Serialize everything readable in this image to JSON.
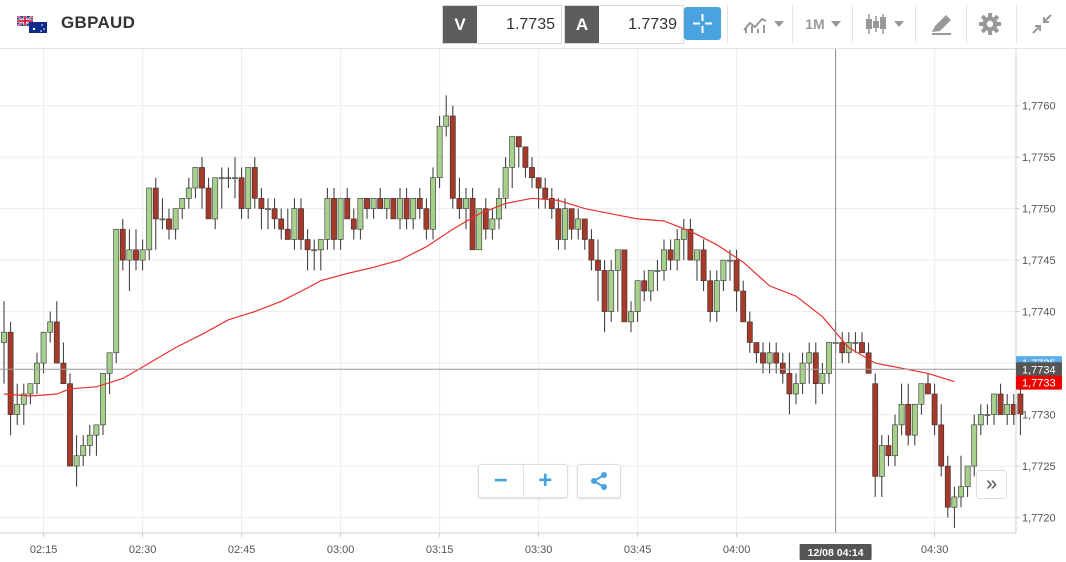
{
  "header": {
    "symbol": "GBPAUD",
    "flag_icon": "gb-au-flag-icon",
    "bid": {
      "label": "V",
      "value": "1.7735"
    },
    "ask": {
      "label": "A",
      "value": "1.7739"
    },
    "timeframe": "1M",
    "icons": [
      "crosshair-icon",
      "line-chart-icon",
      "candlestick-icon",
      "drawing-pencil-icon",
      "gear-icon",
      "collapse-icon"
    ],
    "accent_color": "#4aa3df"
  },
  "chart_data": {
    "type": "candlestick",
    "symbol": "GBPAUD",
    "interval": "1M",
    "x_ticks": [
      "02:15",
      "02:30",
      "02:45",
      "03:00",
      "03:15",
      "03:30",
      "03:45",
      "04:00",
      "04:30"
    ],
    "x_tick_index": [
      6,
      21,
      36,
      51,
      66,
      81,
      96,
      111,
      141
    ],
    "y_ticks": [
      "1,7760",
      "1,7755",
      "1,7750",
      "1,7745",
      "1,7740",
      "1,7735",
      "1,7730",
      "1,7725",
      "1,7720"
    ],
    "y_tick_values": [
      1.776,
      1.7755,
      1.775,
      1.7745,
      1.774,
      1.7735,
      1.773,
      1.7725,
      1.772
    ],
    "ylim": [
      1.77185,
      1.77655
    ],
    "grid": true,
    "current_price_line": 1.77344,
    "price_labels": [
      {
        "text": "1,7735",
        "value": 1.7735,
        "color": "#5aaee8"
      },
      {
        "text": "1,7734",
        "value": 1.77344,
        "color": "#555555"
      },
      {
        "text": "1,7733",
        "value": 1.77331,
        "color": "#ee0000"
      }
    ],
    "crosshair": {
      "index": 126,
      "label": "12/08 04:14"
    },
    "colors": {
      "up": "#a8d08d",
      "down": "#a63a2a",
      "ma": "#e8322e"
    },
    "candles": [
      [
        1.7737,
        1.7741,
        1.7733,
        1.7738
      ],
      [
        1.7738,
        1.7739,
        1.7728,
        1.773
      ],
      [
        1.773,
        1.7733,
        1.7729,
        1.7731
      ],
      [
        1.7731,
        1.7733,
        1.7729,
        1.7732
      ],
      [
        1.7732,
        1.7733,
        1.7731,
        1.7733
      ],
      [
        1.7733,
        1.7736,
        1.7732,
        1.7735
      ],
      [
        1.7735,
        1.7738,
        1.7734,
        1.7738
      ],
      [
        1.7738,
        1.774,
        1.7737,
        1.7739
      ],
      [
        1.7739,
        1.7741,
        1.7735,
        1.7735
      ],
      [
        1.7735,
        1.7737,
        1.7733,
        1.7733
      ],
      [
        1.7733,
        1.7734,
        1.7725,
        1.7725
      ],
      [
        1.7725,
        1.7728,
        1.7723,
        1.7726
      ],
      [
        1.7726,
        1.7728,
        1.7725,
        1.7727
      ],
      [
        1.7727,
        1.7729,
        1.7726,
        1.7728
      ],
      [
        1.7728,
        1.7729,
        1.7726,
        1.7729
      ],
      [
        1.7729,
        1.7734,
        1.7728,
        1.7734
      ],
      [
        1.7734,
        1.7736,
        1.7732,
        1.7736
      ],
      [
        1.7736,
        1.7748,
        1.7735,
        1.7748
      ],
      [
        1.7748,
        1.7749,
        1.7744,
        1.7745
      ],
      [
        1.7745,
        1.7748,
        1.7742,
        1.7746
      ],
      [
        1.7746,
        1.7748,
        1.7744,
        1.7745
      ],
      [
        1.7745,
        1.7747,
        1.7744,
        1.7746
      ],
      [
        1.7746,
        1.7752,
        1.7745,
        1.7752
      ],
      [
        1.7752,
        1.7753,
        1.7746,
        1.7749
      ],
      [
        1.7749,
        1.7751,
        1.7748,
        1.7749
      ],
      [
        1.7749,
        1.775,
        1.7747,
        1.7748
      ],
      [
        1.7748,
        1.775,
        1.7747,
        1.775
      ],
      [
        1.775,
        1.7751,
        1.7749,
        1.7751
      ],
      [
        1.7751,
        1.7753,
        1.775,
        1.7752
      ],
      [
        1.7752,
        1.7754,
        1.7751,
        1.7754
      ],
      [
        1.7754,
        1.7755,
        1.775,
        1.7752
      ],
      [
        1.7752,
        1.7753,
        1.7749,
        1.7749
      ],
      [
        1.7749,
        1.7753,
        1.7748,
        1.7753
      ],
      [
        1.7753,
        1.7754,
        1.775,
        1.7753
      ],
      [
        1.7753,
        1.7754,
        1.7752,
        1.7753
      ],
      [
        1.7753,
        1.7755,
        1.7751,
        1.7753
      ],
      [
        1.7753,
        1.7754,
        1.7749,
        1.775
      ],
      [
        1.775,
        1.7754,
        1.7749,
        1.7754
      ],
      [
        1.7754,
        1.7755,
        1.775,
        1.7751
      ],
      [
        1.7751,
        1.7752,
        1.7748,
        1.775
      ],
      [
        1.775,
        1.7751,
        1.7748,
        1.775
      ],
      [
        1.775,
        1.7751,
        1.7748,
        1.7749
      ],
      [
        1.7749,
        1.775,
        1.7747,
        1.7748
      ],
      [
        1.7748,
        1.775,
        1.7747,
        1.7747
      ],
      [
        1.7747,
        1.7751,
        1.7746,
        1.775
      ],
      [
        1.775,
        1.7751,
        1.7746,
        1.7747
      ],
      [
        1.7747,
        1.7748,
        1.7744,
        1.7746
      ],
      [
        1.7746,
        1.7747,
        1.7744,
        1.7746
      ],
      [
        1.7746,
        1.7747,
        1.7744,
        1.7747
      ],
      [
        1.7747,
        1.7752,
        1.7746,
        1.7751
      ],
      [
        1.7751,
        1.7752,
        1.7746,
        1.7747
      ],
      [
        1.7747,
        1.7751,
        1.7746,
        1.7751
      ],
      [
        1.7751,
        1.7752,
        1.7749,
        1.7749
      ],
      [
        1.7749,
        1.775,
        1.7747,
        1.7748
      ],
      [
        1.7748,
        1.7751,
        1.7747,
        1.7751
      ],
      [
        1.7751,
        1.7751,
        1.7749,
        1.775
      ],
      [
        1.775,
        1.7751,
        1.7749,
        1.7751
      ],
      [
        1.7751,
        1.7752,
        1.775,
        1.775
      ],
      [
        1.775,
        1.7751,
        1.7749,
        1.7751
      ],
      [
        1.7751,
        1.7751,
        1.7749,
        1.7749
      ],
      [
        1.7749,
        1.7752,
        1.7748,
        1.7751
      ],
      [
        1.7751,
        1.7752,
        1.7748,
        1.7749
      ],
      [
        1.7749,
        1.7751,
        1.7748,
        1.7751
      ],
      [
        1.7751,
        1.7752,
        1.7749,
        1.775
      ],
      [
        1.775,
        1.7751,
        1.7747,
        1.7748
      ],
      [
        1.7748,
        1.7754,
        1.7747,
        1.7753
      ],
      [
        1.7753,
        1.7759,
        1.7752,
        1.7758
      ],
      [
        1.7758,
        1.7761,
        1.7757,
        1.7759
      ],
      [
        1.7759,
        1.776,
        1.775,
        1.7751
      ],
      [
        1.7751,
        1.7753,
        1.7749,
        1.775
      ],
      [
        1.775,
        1.7752,
        1.7748,
        1.7751
      ],
      [
        1.7751,
        1.7752,
        1.7746,
        1.7746
      ],
      [
        1.7746,
        1.775,
        1.7746,
        1.775
      ],
      [
        1.775,
        1.7751,
        1.7747,
        1.7748
      ],
      [
        1.7748,
        1.775,
        1.7747,
        1.7749
      ],
      [
        1.7749,
        1.7752,
        1.7748,
        1.7751
      ],
      [
        1.7751,
        1.7755,
        1.775,
        1.7754
      ],
      [
        1.7754,
        1.7757,
        1.7752,
        1.7757
      ],
      [
        1.7757,
        1.7757,
        1.7754,
        1.7756
      ],
      [
        1.7756,
        1.7756,
        1.7753,
        1.7754
      ],
      [
        1.7754,
        1.7755,
        1.7752,
        1.7753
      ],
      [
        1.7753,
        1.7753,
        1.775,
        1.7752
      ],
      [
        1.7752,
        1.7753,
        1.775,
        1.7751
      ],
      [
        1.7751,
        1.7752,
        1.7749,
        1.775
      ],
      [
        1.775,
        1.7751,
        1.7746,
        1.7747
      ],
      [
        1.7747,
        1.7751,
        1.7746,
        1.775
      ],
      [
        1.775,
        1.775,
        1.7747,
        1.7748
      ],
      [
        1.7748,
        1.775,
        1.7747,
        1.7749
      ],
      [
        1.7749,
        1.7749,
        1.7746,
        1.7747
      ],
      [
        1.7747,
        1.7748,
        1.7744,
        1.7745
      ],
      [
        1.7745,
        1.7747,
        1.7741,
        1.7744
      ],
      [
        1.7744,
        1.7745,
        1.7738,
        1.774
      ],
      [
        1.774,
        1.7745,
        1.7739,
        1.7744
      ],
      [
        1.7744,
        1.7746,
        1.774,
        1.7746
      ],
      [
        1.7746,
        1.7746,
        1.7739,
        1.7739
      ],
      [
        1.7739,
        1.7741,
        1.7738,
        1.774
      ],
      [
        1.774,
        1.7743,
        1.7739,
        1.7743
      ],
      [
        1.7743,
        1.7744,
        1.7741,
        1.7742
      ],
      [
        1.7742,
        1.7744,
        1.7741,
        1.7744
      ],
      [
        1.7744,
        1.7745,
        1.7742,
        1.7744
      ],
      [
        1.7744,
        1.7747,
        1.7743,
        1.7746
      ],
      [
        1.7746,
        1.7747,
        1.7744,
        1.7745
      ],
      [
        1.7745,
        1.7748,
        1.7744,
        1.7747
      ],
      [
        1.7747,
        1.7749,
        1.7745,
        1.7748
      ],
      [
        1.7748,
        1.7749,
        1.7745,
        1.7745
      ],
      [
        1.7745,
        1.7746,
        1.7743,
        1.7746
      ],
      [
        1.7746,
        1.7747,
        1.7742,
        1.7743
      ],
      [
        1.7743,
        1.7744,
        1.7739,
        1.774
      ],
      [
        1.774,
        1.7744,
        1.7739,
        1.7743
      ],
      [
        1.7743,
        1.7745,
        1.7742,
        1.7745
      ],
      [
        1.7745,
        1.7746,
        1.7743,
        1.7745
      ],
      [
        1.7745,
        1.7746,
        1.774,
        1.7742
      ],
      [
        1.7742,
        1.7743,
        1.7739,
        1.7739
      ],
      [
        1.7739,
        1.774,
        1.7736,
        1.7737
      ],
      [
        1.7737,
        1.7737,
        1.7735,
        1.7736
      ],
      [
        1.7736,
        1.7737,
        1.7734,
        1.7735
      ],
      [
        1.7735,
        1.7737,
        1.7734,
        1.7736
      ],
      [
        1.7736,
        1.7737,
        1.7734,
        1.7735
      ],
      [
        1.7735,
        1.7736,
        1.7733,
        1.7734
      ],
      [
        1.7734,
        1.7736,
        1.773,
        1.7732
      ],
      [
        1.7732,
        1.7734,
        1.7731,
        1.7733
      ],
      [
        1.7733,
        1.7736,
        1.7732,
        1.7735
      ],
      [
        1.7735,
        1.7737,
        1.7733,
        1.7736
      ],
      [
        1.7736,
        1.7737,
        1.7731,
        1.7733
      ],
      [
        1.7733,
        1.7735,
        1.7732,
        1.7734
      ],
      [
        1.7734,
        1.7737,
        1.7733,
        1.7737
      ],
      [
        1.7737,
        1.7739,
        1.7736,
        1.7737
      ],
      [
        1.7737,
        1.7738,
        1.7735,
        1.7736
      ],
      [
        1.7736,
        1.7738,
        1.7735,
        1.7737
      ],
      [
        1.7737,
        1.7738,
        1.7736,
        1.7737
      ],
      [
        1.7737,
        1.7738,
        1.7736,
        1.7736
      ],
      [
        1.7736,
        1.7737,
        1.7734,
        1.7734
      ],
      [
        1.7733,
        1.7734,
        1.7722,
        1.7724
      ],
      [
        1.7724,
        1.7728,
        1.7722,
        1.7727
      ],
      [
        1.7727,
        1.7728,
        1.7725,
        1.7726
      ],
      [
        1.7726,
        1.773,
        1.7725,
        1.7729
      ],
      [
        1.7729,
        1.7733,
        1.7728,
        1.7731
      ],
      [
        1.7731,
        1.7733,
        1.7727,
        1.7728
      ],
      [
        1.7728,
        1.7731,
        1.7727,
        1.7731
      ],
      [
        1.7731,
        1.7733,
        1.773,
        1.7733
      ],
      [
        1.7733,
        1.7734,
        1.7732,
        1.7732
      ],
      [
        1.7732,
        1.7733,
        1.7728,
        1.7729
      ],
      [
        1.7729,
        1.7731,
        1.7724,
        1.7725
      ],
      [
        1.7725,
        1.7726,
        1.772,
        1.7721
      ],
      [
        1.7721,
        1.7723,
        1.7719,
        1.7722
      ],
      [
        1.7722,
        1.7726,
        1.7721,
        1.7723
      ],
      [
        1.7723,
        1.7725,
        1.7722,
        1.7725
      ],
      [
        1.7725,
        1.773,
        1.7724,
        1.7729
      ],
      [
        1.7729,
        1.7731,
        1.7728,
        1.773
      ],
      [
        1.773,
        1.7731,
        1.7729,
        1.773
      ],
      [
        1.773,
        1.7732,
        1.7729,
        1.7732
      ],
      [
        1.7732,
        1.7733,
        1.773,
        1.773
      ],
      [
        1.773,
        1.7732,
        1.7729,
        1.7731
      ],
      [
        1.7731,
        1.7732,
        1.7729,
        1.773
      ],
      [
        1.7732,
        1.7733,
        1.7728,
        1.773
      ]
    ],
    "moving_average": [
      [
        0,
        1.7732
      ],
      [
        4,
        1.77318
      ],
      [
        8,
        1.7732
      ],
      [
        10,
        1.77325
      ],
      [
        14,
        1.77327
      ],
      [
        18,
        1.77335
      ],
      [
        22,
        1.7735
      ],
      [
        26,
        1.77365
      ],
      [
        30,
        1.77378
      ],
      [
        34,
        1.77392
      ],
      [
        38,
        1.774
      ],
      [
        42,
        1.7741
      ],
      [
        46,
        1.77423
      ],
      [
        48,
        1.7743
      ],
      [
        52,
        1.77437
      ],
      [
        56,
        1.77443
      ],
      [
        60,
        1.7745
      ],
      [
        64,
        1.77463
      ],
      [
        68,
        1.7748
      ],
      [
        72,
        1.77495
      ],
      [
        76,
        1.77505
      ],
      [
        80,
        1.7751
      ],
      [
        84,
        1.77508
      ],
      [
        88,
        1.775
      ],
      [
        92,
        1.77495
      ],
      [
        96,
        1.7749
      ],
      [
        100,
        1.77488
      ],
      [
        104,
        1.77478
      ],
      [
        108,
        1.77465
      ],
      [
        112,
        1.77448
      ],
      [
        116,
        1.77425
      ],
      [
        120,
        1.77415
      ],
      [
        124,
        1.77395
      ],
      [
        128,
        1.77365
      ],
      [
        132,
        1.7735
      ],
      [
        136,
        1.77345
      ],
      [
        140,
        1.7734
      ],
      [
        144,
        1.77332
      ]
    ]
  },
  "controls": {
    "zoom_out_icon": "minus-icon",
    "zoom_in_icon": "plus-icon",
    "share_icon": "share-icon",
    "scroll_icon": "double-chevron-right-icon"
  }
}
